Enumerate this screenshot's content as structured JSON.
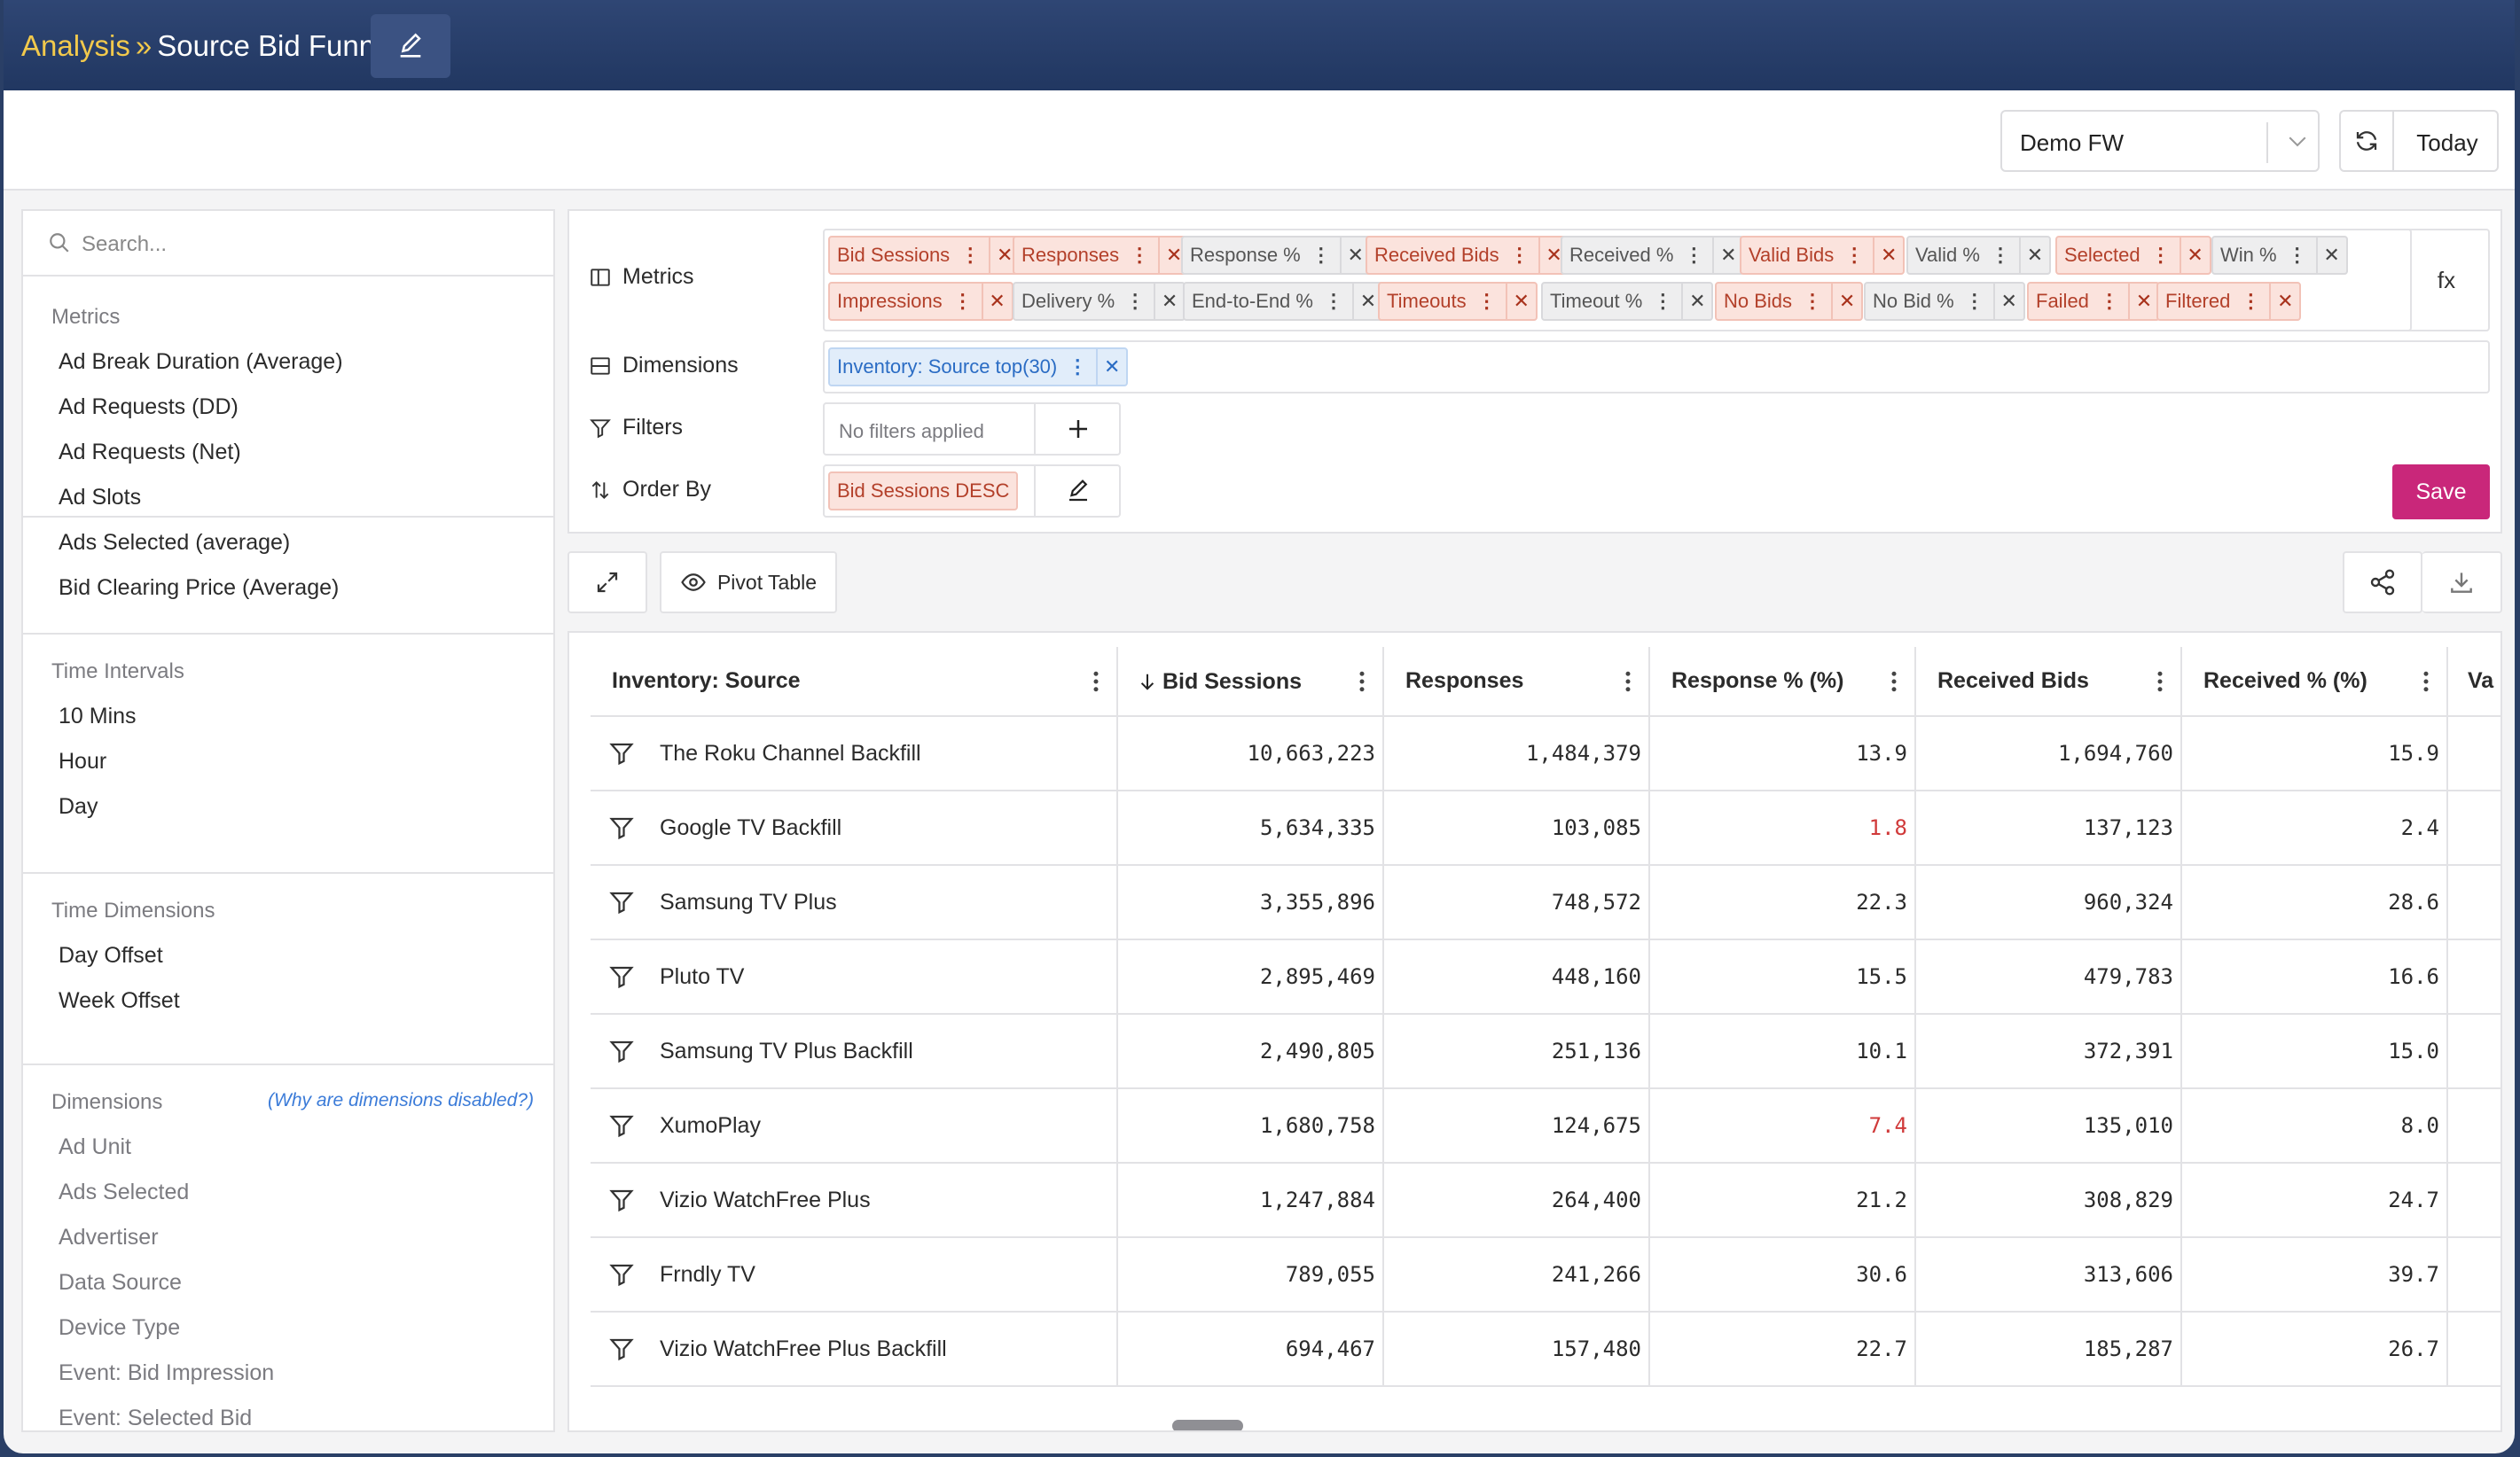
{
  "breadcrumb": {
    "root": "Analysis",
    "separator": "»",
    "title": "Source Bid Funnel"
  },
  "datasource": {
    "selected": "Demo FW"
  },
  "date_range": {
    "label": "Today"
  },
  "sidebar": {
    "search_placeholder": "Search...",
    "metrics": {
      "heading": "Metrics",
      "items": [
        "Ad Break Duration (Average)",
        "Ad Requests (DD)",
        "Ad Requests (Net)",
        "Ad Slots",
        "Ads Selected (average)",
        "Bid Clearing Price (Average)"
      ]
    },
    "time_intervals": {
      "heading": "Time Intervals",
      "items": [
        "10 Mins",
        "Hour",
        "Day"
      ]
    },
    "time_dimensions": {
      "heading": "Time Dimensions",
      "items": [
        "Day Offset",
        "Week Offset"
      ]
    },
    "dimensions": {
      "heading": "Dimensions",
      "help_link": "(Why are dimensions disabled?)",
      "items": [
        "Ad Unit",
        "Ads Selected",
        "Advertiser",
        "Data Source",
        "Device Type",
        "Event: Bid Impression",
        "Event: Selected Bid"
      ]
    }
  },
  "builder": {
    "metrics_label": "Metrics",
    "dimensions_label": "Dimensions",
    "filters_label": "Filters",
    "order_label": "Order By",
    "fx_label": "fx",
    "metric_chips_row1": [
      {
        "label": "Bid Sessions",
        "style": "red"
      },
      {
        "label": "Responses",
        "style": "red"
      },
      {
        "label": "Response %",
        "style": "grey"
      },
      {
        "label": "Received Bids",
        "style": "red"
      },
      {
        "label": "Received %",
        "style": "grey"
      },
      {
        "label": "Valid Bids",
        "style": "red"
      },
      {
        "label": "Valid %",
        "style": "grey"
      },
      {
        "label": "Selected",
        "style": "red"
      },
      {
        "label": "Win %",
        "style": "grey"
      }
    ],
    "metric_chips_row2": [
      {
        "label": "Impressions",
        "style": "red"
      },
      {
        "label": "Delivery %",
        "style": "grey"
      },
      {
        "label": "End-to-End %",
        "style": "grey"
      },
      {
        "label": "Timeouts",
        "style": "red"
      },
      {
        "label": "Timeout %",
        "style": "grey"
      },
      {
        "label": "No Bids",
        "style": "red"
      },
      {
        "label": "No Bid %",
        "style": "grey"
      },
      {
        "label": "Failed",
        "style": "red"
      },
      {
        "label": "Filtered",
        "style": "red"
      }
    ],
    "dimension_chip": "Inventory: Source top(30)",
    "filters_placeholder": "No filters applied",
    "order_chip": "Bid Sessions DESC",
    "save_label": "Save"
  },
  "toolbar": {
    "pivot_label": "Pivot Table"
  },
  "table": {
    "columns": [
      "Inventory: Source",
      "Bid Sessions",
      "Responses",
      "Response % (%)",
      "Received Bids",
      "Received % (%)",
      "Va"
    ],
    "sort_column": "Bid Sessions",
    "rows": [
      {
        "source": "The Roku Channel Backfill",
        "bid_sessions": "10,663,223",
        "responses": "1,484,379",
        "response_pct": "13.9",
        "received_bids": "1,694,760",
        "received_pct": "15.9",
        "response_pct_alert": false
      },
      {
        "source": "Google TV Backfill",
        "bid_sessions": "5,634,335",
        "responses": "103,085",
        "response_pct": "1.8",
        "received_bids": "137,123",
        "received_pct": "2.4",
        "response_pct_alert": true
      },
      {
        "source": "Samsung TV Plus",
        "bid_sessions": "3,355,896",
        "responses": "748,572",
        "response_pct": "22.3",
        "received_bids": "960,324",
        "received_pct": "28.6",
        "response_pct_alert": false
      },
      {
        "source": "Pluto TV",
        "bid_sessions": "2,895,469",
        "responses": "448,160",
        "response_pct": "15.5",
        "received_bids": "479,783",
        "received_pct": "16.6",
        "response_pct_alert": false
      },
      {
        "source": "Samsung TV Plus Backfill",
        "bid_sessions": "2,490,805",
        "responses": "251,136",
        "response_pct": "10.1",
        "received_bids": "372,391",
        "received_pct": "15.0",
        "response_pct_alert": false
      },
      {
        "source": "XumoPlay",
        "bid_sessions": "1,680,758",
        "responses": "124,675",
        "response_pct": "7.4",
        "received_bids": "135,010",
        "received_pct": "8.0",
        "response_pct_alert": true
      },
      {
        "source": "Vizio WatchFree Plus",
        "bid_sessions": "1,247,884",
        "responses": "264,400",
        "response_pct": "21.2",
        "received_bids": "308,829",
        "received_pct": "24.7",
        "response_pct_alert": false
      },
      {
        "source": "Frndly TV",
        "bid_sessions": "789,055",
        "responses": "241,266",
        "response_pct": "30.6",
        "received_bids": "313,606",
        "received_pct": "39.7",
        "response_pct_alert": false
      },
      {
        "source": "Vizio WatchFree Plus Backfill",
        "bid_sessions": "694,467",
        "responses": "157,480",
        "response_pct": "22.7",
        "received_bids": "185,287",
        "received_pct": "26.7",
        "response_pct_alert": false
      }
    ]
  },
  "colors": {
    "header_bg": "#2a3f66",
    "accent_crumb": "#f2c94c",
    "save_bg": "#c9277a",
    "metric_chip": "#fbe3dd",
    "derived_chip": "#eeeeef",
    "dimension_chip": "#e1edfa",
    "alert_text": "#d03a3a"
  }
}
